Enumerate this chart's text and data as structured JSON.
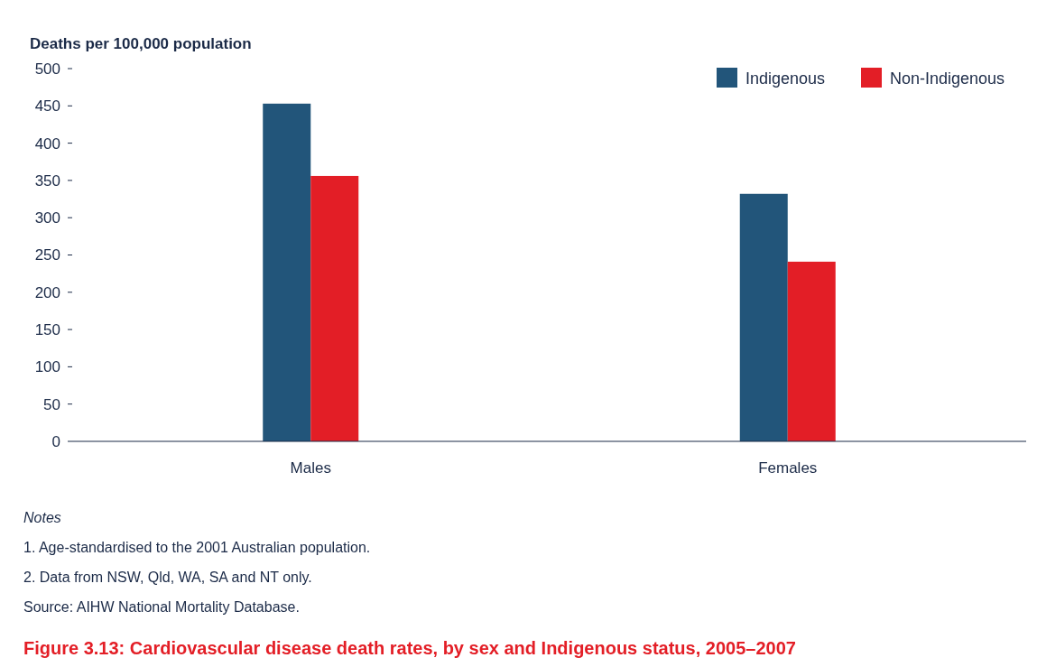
{
  "chart_data": {
    "type": "bar",
    "title": "Figure 3.13: Cardiovascular disease death rates, by sex and Indigenous status, 2005–2007",
    "ylabel": "Deaths per 100,000 population",
    "categories": [
      "Males",
      "Females"
    ],
    "series": [
      {
        "name": "Indigenous",
        "color": "#22557a",
        "values": [
          453,
          332
        ]
      },
      {
        "name": "Non-Indigenous",
        "color": "#e31e26",
        "values": [
          356,
          241
        ]
      }
    ],
    "ylim": [
      0,
      500
    ],
    "yticks": [
      0,
      50,
      100,
      150,
      200,
      250,
      300,
      350,
      400,
      450,
      500
    ],
    "grid": false,
    "legend": "top right",
    "annotations": [
      "Notes",
      "1.  Age-standardised to the 2001 Australian population.",
      "2.  Data from NSW, Qld, WA, SA and NT only.",
      "Source: AIHW National Mortality Database."
    ]
  }
}
